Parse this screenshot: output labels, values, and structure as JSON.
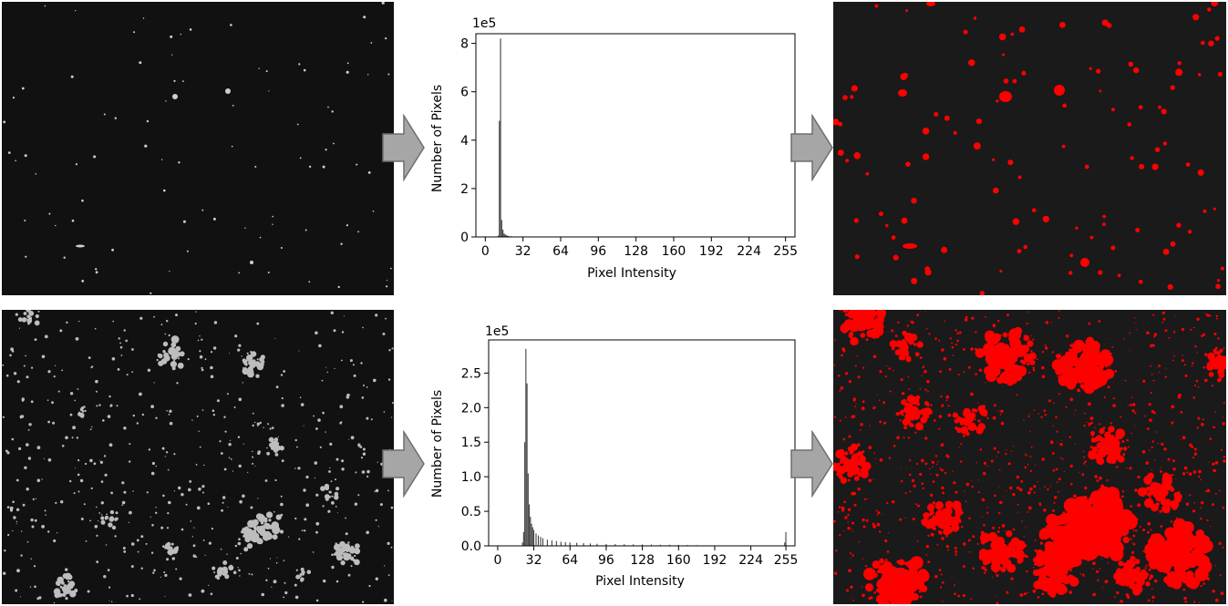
{
  "colors": {
    "background": "#ffffff",
    "image_bg": "#111111",
    "segmented_bg": "#1a1a1a",
    "spot": "#ff0000",
    "bright_spot": "#e8e8e8",
    "histogram_bar": "#444444",
    "arrow_fill": "#a6a6a6",
    "arrow_stroke": "#6e6e6e"
  },
  "icons": {
    "flow_arrow": "right-block-arrow",
    "source_image": "fluorescence-micrograph",
    "result_image": "segmentation-mask"
  },
  "chart_data": [
    {
      "type": "bar",
      "title": "",
      "xlabel": "Pixel Intensity",
      "ylabel": "Number of Pixels",
      "scale_label": "1e5",
      "xlim": [
        -8,
        263
      ],
      "ylim": [
        0,
        8.4
      ],
      "xticks": [
        0,
        32,
        64,
        96,
        128,
        160,
        192,
        224,
        255
      ],
      "yticks": [
        0,
        2,
        4,
        6,
        8
      ],
      "grid": false,
      "x": [
        11,
        12,
        13,
        14,
        15,
        16,
        17,
        18,
        19,
        20,
        22,
        24,
        26,
        28,
        30
      ],
      "values": [
        0.05,
        4.8,
        8.2,
        0.7,
        0.3,
        0.15,
        0.1,
        0.07,
        0.05,
        0.04,
        0.03,
        0.02,
        0.02,
        0.01,
        0.01
      ]
    },
    {
      "type": "bar",
      "title": "",
      "xlabel": "Pixel Intensity",
      "ylabel": "Number of Pixels",
      "scale_label": "1e5",
      "xlim": [
        -8,
        263
      ],
      "ylim": [
        0,
        2.98
      ],
      "xticks": [
        0,
        32,
        64,
        96,
        128,
        160,
        192,
        224,
        255
      ],
      "yticks": [
        0,
        0.5,
        1.0,
        1.5,
        2.0,
        2.5
      ],
      "ytick_labels": [
        "0.0",
        "0.5",
        "1.0",
        "1.5",
        "2.0",
        "2.5"
      ],
      "grid": false,
      "x": [
        22,
        23,
        24,
        25,
        26,
        27,
        28,
        29,
        30,
        31,
        32,
        34,
        36,
        38,
        40,
        44,
        48,
        52,
        56,
        60,
        64,
        70,
        76,
        82,
        88,
        96,
        104,
        112,
        120,
        128,
        136,
        144,
        152,
        160,
        168,
        176,
        184,
        254,
        255
      ],
      "values": [
        0.05,
        0.2,
        1.5,
        2.85,
        2.35,
        1.05,
        0.6,
        0.42,
        0.32,
        0.27,
        0.23,
        0.18,
        0.15,
        0.13,
        0.11,
        0.09,
        0.08,
        0.07,
        0.06,
        0.055,
        0.05,
        0.045,
        0.04,
        0.035,
        0.03,
        0.028,
        0.025,
        0.023,
        0.021,
        0.02,
        0.018,
        0.016,
        0.015,
        0.014,
        0.012,
        0.01,
        0.008,
        0.05,
        0.2
      ]
    }
  ]
}
